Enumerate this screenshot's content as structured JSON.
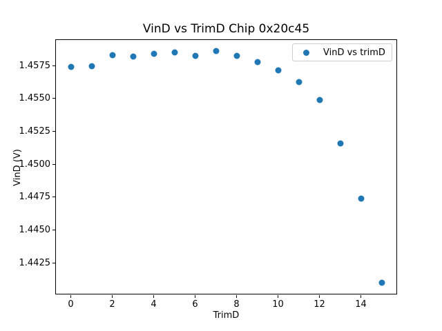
{
  "chart_data": {
    "type": "scatter",
    "title": "VinD vs TrimD Chip 0x20c45",
    "xlabel": "TrimD",
    "ylabel": "VinD (V)",
    "series": [
      {
        "name": "VinD vs trimD",
        "x": [
          0,
          1,
          2,
          3,
          4,
          5,
          6,
          7,
          8,
          9,
          10,
          11,
          12,
          13,
          14,
          15
        ],
        "y": [
          1.45738,
          1.45746,
          1.45832,
          1.45818,
          1.45838,
          1.45852,
          1.45825,
          1.45862,
          1.45824,
          1.45777,
          1.45714,
          1.45625,
          1.45488,
          1.45159,
          1.44737,
          1.44098
        ]
      }
    ],
    "marker_color": "#1f77b4",
    "xlim": [
      -0.75,
      15.75
    ],
    "ylim": [
      1.4401,
      1.4595
    ],
    "xticks": [
      0,
      2,
      4,
      6,
      8,
      10,
      12,
      14
    ],
    "xtick_labels": [
      "0",
      "2",
      "4",
      "6",
      "8",
      "10",
      "12",
      "14"
    ],
    "yticks": [
      1.4425,
      1.445,
      1.4475,
      1.45,
      1.4525,
      1.455,
      1.4575
    ],
    "ytick_labels": [
      "1.4425",
      "1.4450",
      "1.4475",
      "1.4500",
      "1.4525",
      "1.4550",
      "1.4575"
    ],
    "grid": false,
    "legend_position": "upper right",
    "legend": {
      "label": "VinD vs trimD"
    }
  }
}
